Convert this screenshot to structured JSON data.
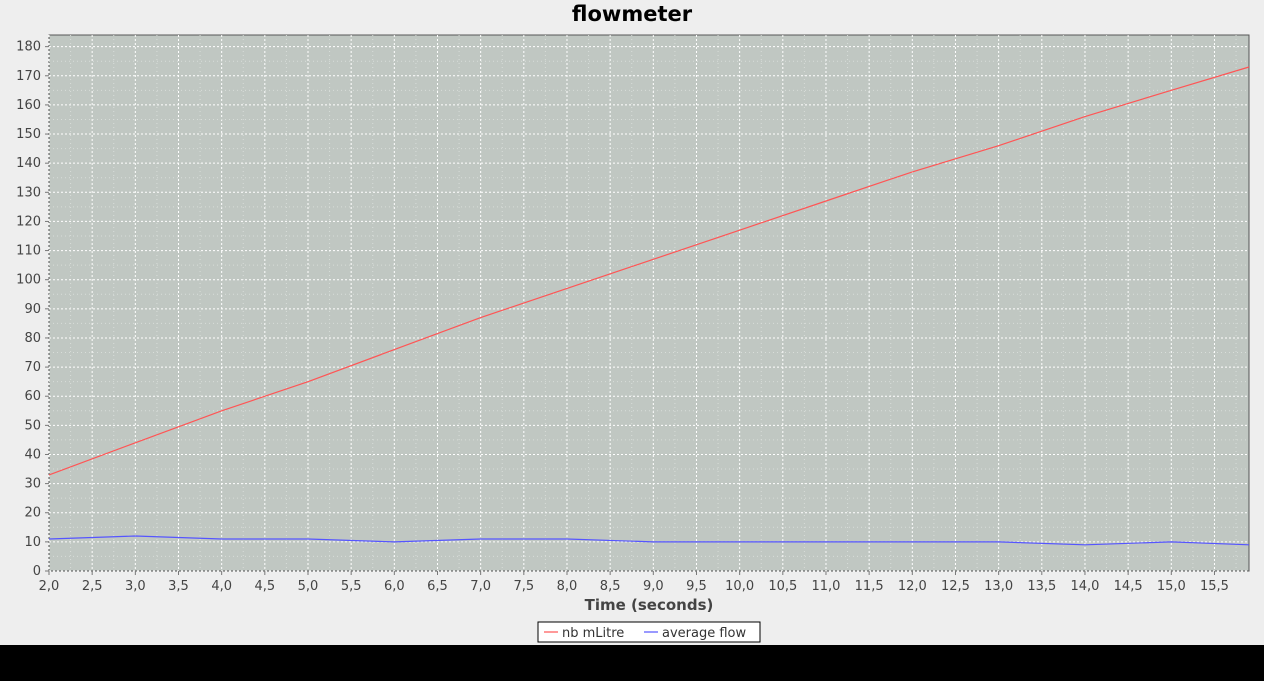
{
  "chart_data": {
    "type": "line",
    "title": "flowmeter",
    "xlabel": "Time (seconds)",
    "ylabel": "",
    "xlim": [
      2.0,
      15.9
    ],
    "ylim": [
      0,
      184
    ],
    "x_ticks": [
      "2,0",
      "2,5",
      "3,0",
      "3,5",
      "4,0",
      "4,5",
      "5,0",
      "5,5",
      "6,0",
      "6,5",
      "7,0",
      "7,5",
      "8,0",
      "8,5",
      "9,0",
      "9,5",
      "10,0",
      "10,5",
      "11,0",
      "11,5",
      "12,0",
      "12,5",
      "13,0",
      "13,5",
      "14,0",
      "14,5",
      "15,0",
      "15,5"
    ],
    "y_ticks": [
      "0",
      "10",
      "20",
      "30",
      "40",
      "50",
      "60",
      "70",
      "80",
      "90",
      "100",
      "110",
      "120",
      "130",
      "140",
      "150",
      "160",
      "170",
      "180"
    ],
    "grid": true,
    "legend_position": "bottom-center",
    "series": [
      {
        "name": "nb mLitre",
        "color": "#ff5555",
        "x": [
          2.0,
          3.0,
          4.0,
          5.0,
          6.0,
          7.0,
          8.0,
          9.0,
          10.0,
          11.0,
          12.0,
          13.0,
          14.0,
          15.0,
          15.9
        ],
        "y": [
          33,
          44,
          55,
          65,
          76,
          87,
          97,
          107,
          117,
          127,
          137,
          146,
          156,
          165,
          173
        ]
      },
      {
        "name": "average flow",
        "color": "#5555ff",
        "x": [
          2.0,
          3.0,
          4.0,
          5.0,
          6.0,
          7.0,
          8.0,
          9.0,
          10.0,
          11.0,
          12.0,
          13.0,
          14.0,
          15.0,
          15.9
        ],
        "y": [
          11,
          12,
          11,
          11,
          10,
          11,
          11,
          10,
          10,
          10,
          10,
          10,
          9,
          10,
          9
        ]
      }
    ]
  }
}
